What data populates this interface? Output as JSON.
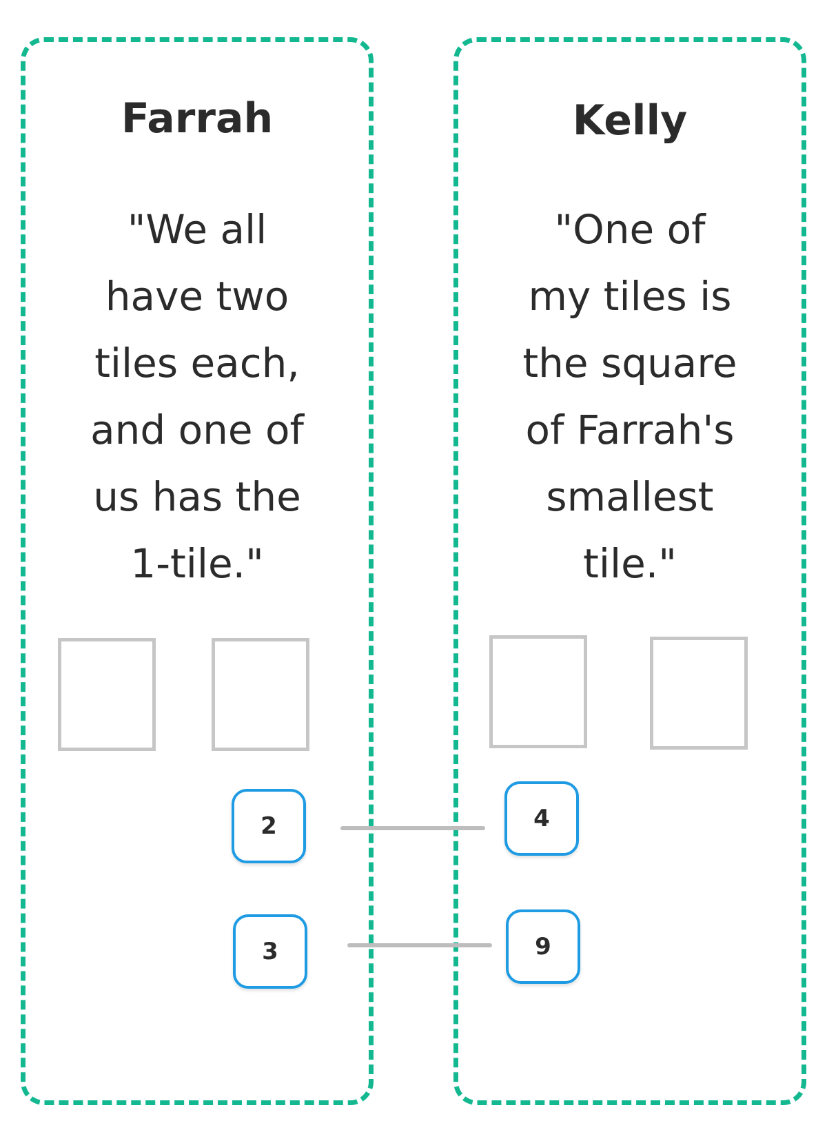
{
  "players": [
    {
      "name": "Farrah",
      "quote_lines": [
        "\"We all",
        "have two",
        "tiles each,",
        "and one of",
        "us has the",
        "1-tile.\""
      ]
    },
    {
      "name": "Kelly",
      "quote_lines": [
        "\"One of",
        "my tiles is",
        "the square",
        "of Farrah's",
        "smallest",
        "tile.\""
      ]
    }
  ],
  "tiles": {
    "left": [
      "2",
      "3"
    ],
    "right": [
      "4",
      "9"
    ]
  },
  "colors": {
    "panel_border": "#14b890",
    "tile_border": "#1e9be3",
    "slot_border": "#c6c6c6",
    "connector": "#bdbdbd"
  }
}
